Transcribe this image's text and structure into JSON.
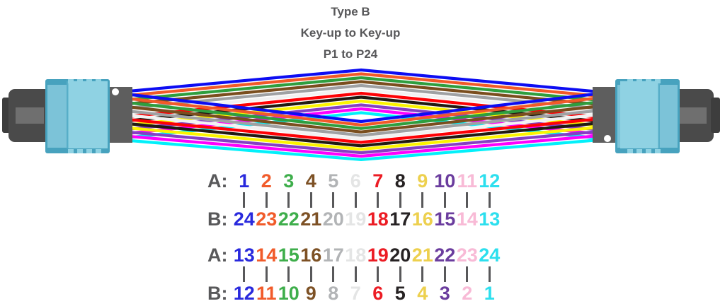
{
  "title": {
    "line1": "Type B",
    "line2": "Key-up to Key-up",
    "line3": "P1 to P24"
  },
  "cable": {
    "fiber_colors": [
      {
        "name": "blue",
        "hex": "#0d0df2"
      },
      {
        "name": "orange",
        "hex": "#f15a29"
      },
      {
        "name": "green",
        "hex": "#2f9e3e"
      },
      {
        "name": "brown",
        "hex": "#7a4e1e"
      },
      {
        "name": "slate",
        "hex": "#9fa1a3"
      },
      {
        "name": "white",
        "hex": "#f2f2f2"
      },
      {
        "name": "red",
        "hex": "#fd0105"
      },
      {
        "name": "black",
        "hex": "#211a12"
      },
      {
        "name": "yellow",
        "hex": "#fcf400"
      },
      {
        "name": "violet",
        "hex": "#8440c4"
      },
      {
        "name": "rose",
        "hex": "#fd01fd"
      },
      {
        "name": "aqua",
        "hex": "#02f0fa"
      }
    ],
    "connector_colors": {
      "housing": "#7cc3d8",
      "housing_dark": "#47a2be",
      "housing_light": "#8fd2e3",
      "panel_edge": "#57aec8",
      "boot": "#4a4a4a",
      "boot_stripe": "#6f6f6f",
      "boot_cap": "#3d3d3d",
      "ferrule": "#5e5e5e",
      "key_hole": "#ffffff"
    },
    "left_connector_key": "top",
    "right_connector_key": "bottom"
  },
  "mapping_tables": [
    {
      "a_label": "A:",
      "b_label": "B:",
      "a": [
        "1",
        "2",
        "3",
        "4",
        "5",
        "6",
        "7",
        "8",
        "9",
        "10",
        "11",
        "12"
      ],
      "b": [
        "24",
        "23",
        "22",
        "21",
        "20",
        "19",
        "18",
        "17",
        "16",
        "15",
        "14",
        "13"
      ]
    },
    {
      "a_label": "A:",
      "b_label": "B:",
      "a": [
        "13",
        "14",
        "15",
        "16",
        "17",
        "18",
        "19",
        "20",
        "21",
        "22",
        "23",
        "24"
      ],
      "b": [
        "12",
        "11",
        "10",
        "9",
        "8",
        "7",
        "6",
        "5",
        "4",
        "3",
        "2",
        "1"
      ]
    }
  ],
  "column_colors": [
    "#2929dd",
    "#f15b2a",
    "#3eae4b",
    "#7d5125",
    "#b2b4b6",
    "#e4e5e5",
    "#ec1c24",
    "#262223",
    "#edd04e",
    "#6b3d9e",
    "#f8bad6",
    "#2cdfee"
  ],
  "text_color": "#58585a"
}
